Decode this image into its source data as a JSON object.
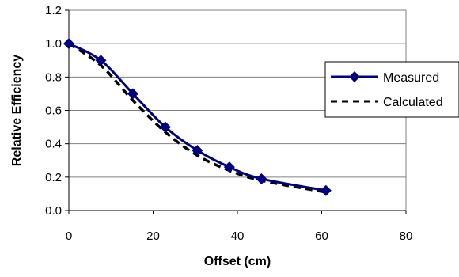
{
  "chart_data": {
    "type": "line",
    "xlabel": "Offset (cm)",
    "ylabel": "Relative Efficiency",
    "xlim": [
      0,
      80
    ],
    "ylim": [
      0,
      1.2
    ],
    "x_ticks": [
      "0",
      "20",
      "40",
      "60",
      "80"
    ],
    "y_ticks": [
      "0.0",
      "0.2",
      "0.4",
      "0.6",
      "0.8",
      "1.0",
      "1.2"
    ],
    "grid": "horizontal",
    "legend_position": "right",
    "series": [
      {
        "name": "Measured",
        "style": "solid line with diamond markers",
        "color": "#000080",
        "x": [
          0,
          7.6,
          15.2,
          22.9,
          30.5,
          38.1,
          45.7,
          61.0
        ],
        "y": [
          1.0,
          0.9,
          0.7,
          0.5,
          0.36,
          0.26,
          0.19,
          0.12
        ]
      },
      {
        "name": "Calculated",
        "style": "dashed line",
        "color": "#000000",
        "x": [
          0,
          7.6,
          15.2,
          22.9,
          30.5,
          38.1,
          45.7,
          61.0
        ],
        "y": [
          1.0,
          0.87,
          0.66,
          0.47,
          0.33,
          0.24,
          0.18,
          0.11
        ]
      }
    ]
  }
}
